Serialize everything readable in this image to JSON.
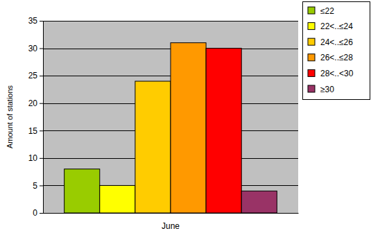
{
  "chart_data": {
    "type": "bar",
    "ylabel": "Amount of stations",
    "categories": [
      "June"
    ],
    "series": [
      {
        "name": "≤22",
        "color": "#99cc00",
        "values": [
          8
        ]
      },
      {
        "name": "22<..≤24",
        "color": "#ffff00",
        "values": [
          5
        ]
      },
      {
        "name": "24<..≤26",
        "color": "#ffcc00",
        "values": [
          24
        ]
      },
      {
        "name": "26<..≤28",
        "color": "#ff9900",
        "values": [
          31
        ]
      },
      {
        "name": "28<..<30",
        "color": "#ff0000",
        "values": [
          30
        ]
      },
      {
        "name": "≥30",
        "color": "#993366",
        "values": [
          4
        ]
      }
    ],
    "ylim": [
      0,
      35
    ],
    "yticks": [
      0,
      5,
      10,
      15,
      20,
      25,
      30,
      35
    ],
    "grid": true,
    "legend": "top-right"
  }
}
